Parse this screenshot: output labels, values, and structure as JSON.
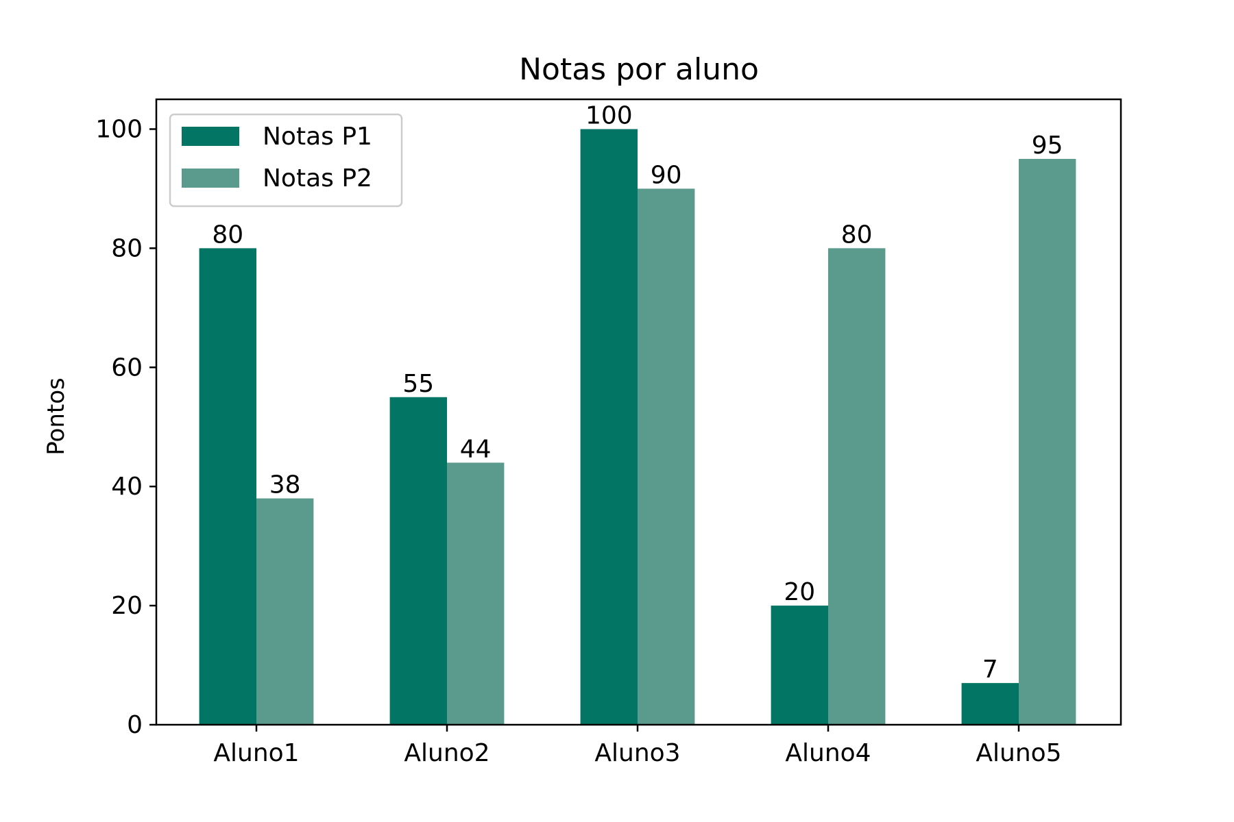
{
  "chart_data": {
    "type": "bar",
    "title": "Notas por aluno",
    "xlabel": "",
    "ylabel": "Pontos",
    "categories": [
      "Aluno1",
      "Aluno2",
      "Aluno3",
      "Aluno4",
      "Aluno5"
    ],
    "series": [
      {
        "name": "Notas P1",
        "color": "#027564",
        "values": [
          80,
          55,
          100,
          20,
          7
        ]
      },
      {
        "name": "Notas P2",
        "color": "#5a9b8d",
        "values": [
          38,
          44,
          90,
          80,
          95
        ]
      }
    ],
    "ylim": [
      0,
      105
    ],
    "yticks": [
      0,
      20,
      40,
      60,
      80,
      100
    ],
    "legend_position": "top-left",
    "grid": false
  }
}
